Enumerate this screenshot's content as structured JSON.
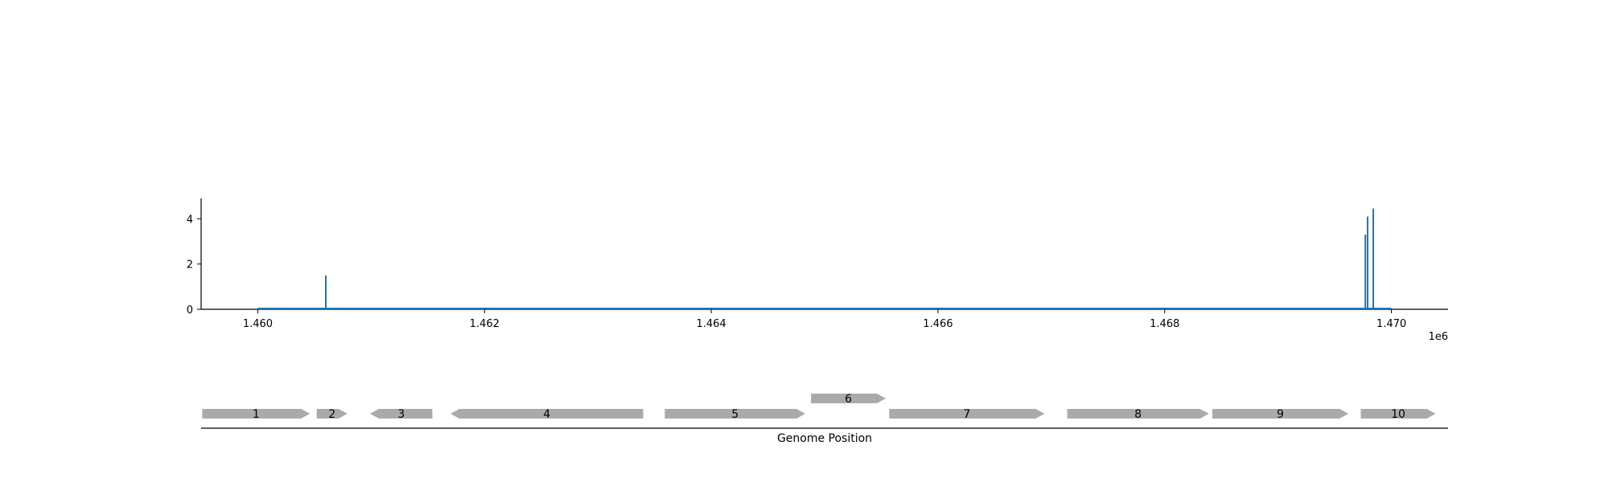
{
  "chart_data": [
    {
      "type": "line",
      "title": "",
      "xlabel": "",
      "ylabel": "",
      "x_offset_label": "1e6",
      "xlim": [
        1459500,
        1470500
      ],
      "ylim": [
        0,
        4.9
      ],
      "xticks": [
        1460000,
        1462000,
        1464000,
        1466000,
        1468000,
        1470000
      ],
      "xtick_labels": [
        "1.460",
        "1.462",
        "1.464",
        "1.466",
        "1.468",
        "1.470"
      ],
      "yticks": [
        0,
        2,
        4
      ],
      "ytick_labels": [
        "0",
        "2",
        "4"
      ],
      "grid": false,
      "baseline": {
        "x_start": 1460000,
        "x_end": 1470000,
        "y": 0
      },
      "series": [
        {
          "color": "#1f77b4",
          "spikes": [
            {
              "x": 1460600,
              "y": 1.5
            },
            {
              "x": 1469770,
              "y": 3.3
            },
            {
              "x": 1469790,
              "y": 4.1
            },
            {
              "x": 1469840,
              "y": 4.45
            }
          ]
        }
      ]
    },
    {
      "type": "gene-track",
      "xlabel": "Genome Position",
      "xlim": [
        1459500,
        1470500
      ],
      "gene_color": "#aaaaaa",
      "genes": [
        {
          "label": "1",
          "start": 1459510,
          "end": 1460460,
          "strand": "+",
          "row": 0
        },
        {
          "label": "2",
          "start": 1460520,
          "end": 1460790,
          "strand": "+",
          "row": 0
        },
        {
          "label": "3",
          "start": 1460990,
          "end": 1461540,
          "strand": "-",
          "row": 0
        },
        {
          "label": "4",
          "start": 1461700,
          "end": 1463400,
          "strand": "-",
          "row": 0
        },
        {
          "label": "5",
          "start": 1463590,
          "end": 1464830,
          "strand": "+",
          "row": 0
        },
        {
          "label": "6",
          "start": 1464880,
          "end": 1465540,
          "strand": "+",
          "row": 1
        },
        {
          "label": "7",
          "start": 1465570,
          "end": 1466940,
          "strand": "+",
          "row": 0
        },
        {
          "label": "8",
          "start": 1467140,
          "end": 1468390,
          "strand": "+",
          "row": 0
        },
        {
          "label": "9",
          "start": 1468420,
          "end": 1469620,
          "strand": "+",
          "row": 0
        },
        {
          "label": "10",
          "start": 1469730,
          "end": 1470390,
          "strand": "+",
          "row": 0
        }
      ]
    }
  ]
}
